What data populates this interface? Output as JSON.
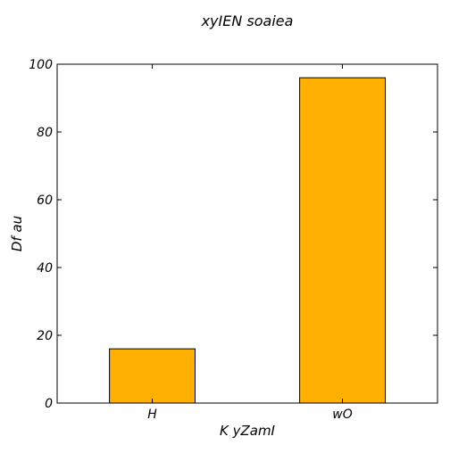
{
  "chart_data": {
    "type": "bar",
    "title": "xyIEN soaiea",
    "xlabel": "K yZamI",
    "ylabel": "Df au",
    "categories": [
      "H",
      "wO"
    ],
    "values": [
      16,
      96
    ],
    "ylim": [
      0,
      100
    ],
    "yticks": [
      "0",
      "20",
      "40",
      "60",
      "80",
      "100"
    ],
    "bar_color": "#FFB000",
    "bar_edge_color": "#000000",
    "grid": false,
    "legend": "none"
  }
}
